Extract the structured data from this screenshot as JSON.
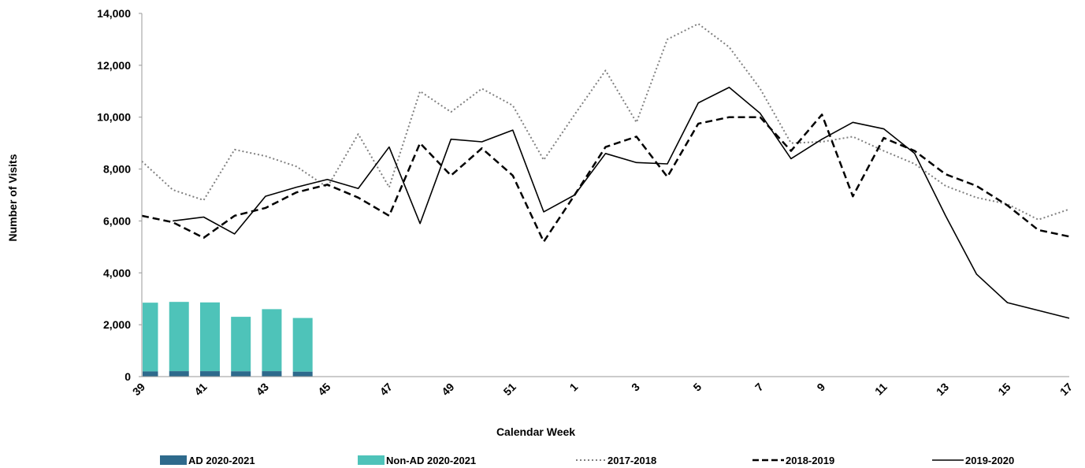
{
  "chart_data": {
    "type": "bar",
    "xlabel": "Calendar Week",
    "ylabel": "Number of Visits",
    "ylim": [
      0,
      14000
    ],
    "y_ticks": [
      "0",
      "2,000",
      "4,000",
      "6,000",
      "8,000",
      "10,000",
      "12,000",
      "14,000"
    ],
    "categories": [
      "39",
      "40",
      "41",
      "42",
      "43",
      "44",
      "45",
      "46",
      "47",
      "48",
      "49",
      "50",
      "51",
      "52",
      "1",
      "2",
      "3",
      "4",
      "5",
      "6",
      "7",
      "8",
      "9",
      "10",
      "11",
      "12",
      "13",
      "14",
      "15",
      "16",
      "17"
    ],
    "x_tick_labels": [
      "39",
      "41",
      "43",
      "45",
      "47",
      "49",
      "51",
      "1",
      "3",
      "5",
      "7",
      "9",
      "11",
      "13",
      "15",
      "17"
    ],
    "stacked_bars": [
      {
        "name": "AD 2020-2021",
        "color": "#2e6a8c",
        "values": [
          200,
          210,
          210,
          205,
          210,
          190
        ]
      },
      {
        "name": "Non-AD 2020-2021",
        "color": "#4ec3b9",
        "values": [
          2650,
          2670,
          2650,
          2100,
          2390,
          2070
        ]
      }
    ],
    "series": [
      {
        "name": "2017-2018",
        "style": "dotted",
        "color": "#808080",
        "values": [
          8300,
          7200,
          6800,
          8750,
          8500,
          8100,
          7300,
          9350,
          7300,
          11000,
          10200,
          11100,
          10450,
          8350,
          10100,
          11800,
          9800,
          13000,
          13600,
          12700,
          11100,
          9000,
          9050,
          9250,
          8700,
          8200,
          7350,
          6900,
          6650,
          6050,
          6450
        ]
      },
      {
        "name": "2018-2019",
        "style": "dashed",
        "color": "#000000",
        "values": [
          6200,
          5950,
          5350,
          6200,
          6500,
          7100,
          7400,
          6900,
          6200,
          9000,
          7750,
          8800,
          7750,
          5200,
          7000,
          8850,
          9250,
          7700,
          9750,
          10000,
          10000,
          8700,
          10100,
          6950,
          9200,
          8700,
          7800,
          7350,
          6600,
          5650,
          5400
        ]
      },
      {
        "name": "2019-2020",
        "style": "solid",
        "color": "#000000",
        "values": [
          null,
          6000,
          6150,
          5500,
          6950,
          7300,
          7600,
          7250,
          8850,
          5900,
          9150,
          9050,
          9500,
          6350,
          7000,
          8600,
          8250,
          8200,
          10550,
          11150,
          10150,
          8400,
          9150,
          9800,
          9550,
          8600,
          6200,
          3950,
          2850,
          2550,
          2250
        ]
      }
    ],
    "legend": {
      "placement": "bottom",
      "entries": [
        "AD 2020-2021",
        "Non-AD 2020-2021",
        "2017-2018",
        "2018-2019",
        "2019-2020"
      ]
    },
    "grid": false
  }
}
